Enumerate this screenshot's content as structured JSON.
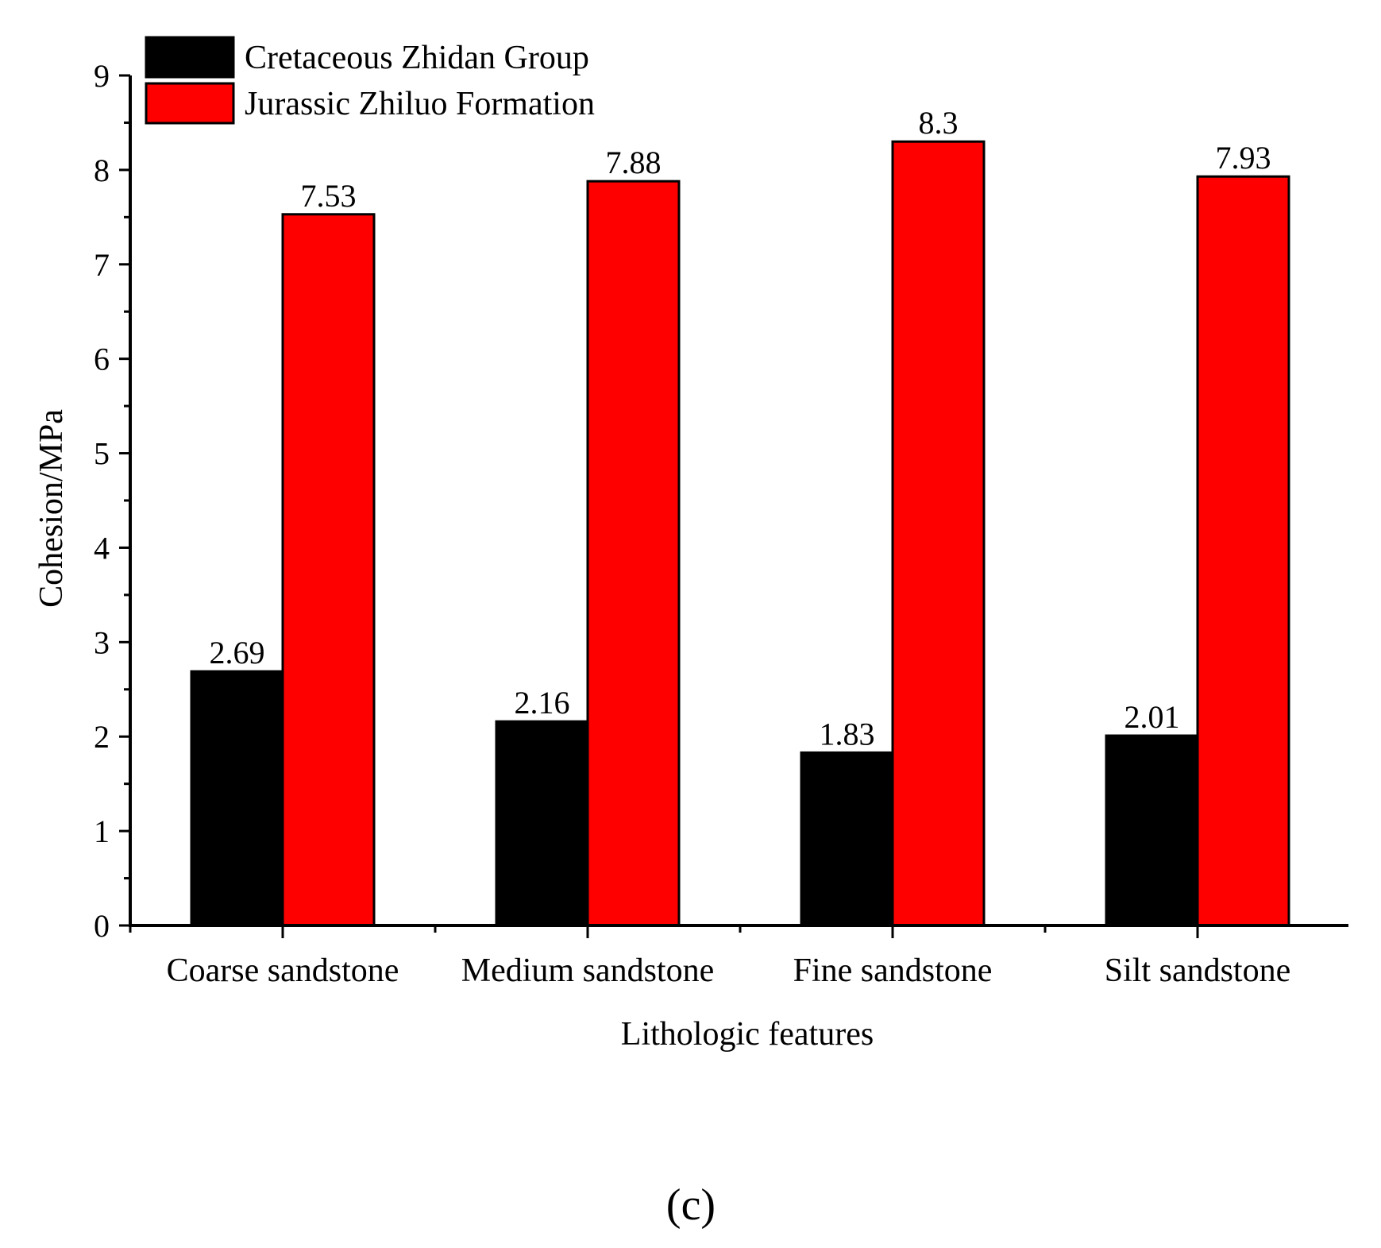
{
  "chart_data": {
    "type": "bar",
    "title": "",
    "xlabel": "Lithologic features",
    "ylabel": "Cohesion/MPa",
    "categories": [
      "Coarse sandstone",
      "Medium sandstone",
      "Fine sandstone",
      "Silt sandstone"
    ],
    "series": [
      {
        "name": "Cretaceous Zhidan Group",
        "color": "#000000",
        "values": [
          2.69,
          2.16,
          1.83,
          2.01
        ],
        "labels": [
          "2.69",
          "2.16",
          "1.83",
          "2.01"
        ]
      },
      {
        "name": "Jurassic Zhiluo Formation",
        "color": "#ff0000",
        "values": [
          7.53,
          7.88,
          8.3,
          7.93
        ],
        "labels": [
          "7.53",
          "7.88",
          "8.3",
          "7.93"
        ]
      }
    ],
    "ylim": [
      0,
      9
    ],
    "yticks": [
      "0",
      "1",
      "2",
      "3",
      "4",
      "5",
      "6",
      "7",
      "8",
      "9"
    ],
    "grid": false,
    "legend_position": "top-left"
  },
  "panel_label": "(c)"
}
